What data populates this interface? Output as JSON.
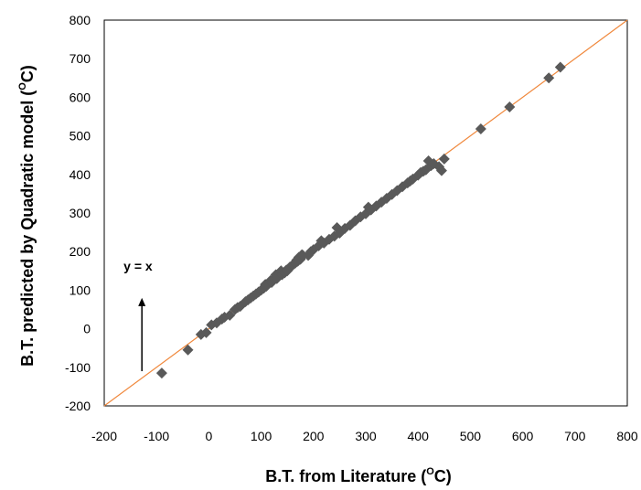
{
  "chart_data": {
    "type": "scatter",
    "title": "",
    "xlabel_main": "B.T. from Literature (",
    "xlabel_unit": "C)",
    "ylabel_main": "B.T. predicted by Quadratic model (",
    "ylabel_unit": "C)",
    "degree_symbol": "O",
    "xlim": [
      -200,
      800
    ],
    "ylim": [
      -200,
      800
    ],
    "xticks": [
      "-200",
      "-100",
      "0",
      "100",
      "200",
      "300",
      "400",
      "500",
      "600",
      "700",
      "800"
    ],
    "yticks": [
      "-200",
      "-100",
      "0",
      "100",
      "200",
      "300",
      "400",
      "500",
      "600",
      "700",
      "800"
    ],
    "grid": false,
    "legend": "none",
    "marker_color": "#595959",
    "line_color": "#f0883c",
    "reference_line": {
      "label": "y = x",
      "from": [
        -200,
        -200
      ],
      "to": [
        800,
        800
      ]
    },
    "points": [
      [
        -90,
        -115
      ],
      [
        -40,
        -55
      ],
      [
        -15,
        -15
      ],
      [
        -5,
        -10
      ],
      [
        5,
        10
      ],
      [
        15,
        15
      ],
      [
        25,
        25
      ],
      [
        30,
        30
      ],
      [
        40,
        35
      ],
      [
        50,
        50
      ],
      [
        55,
        55
      ],
      [
        60,
        58
      ],
      [
        70,
        70
      ],
      [
        75,
        75
      ],
      [
        80,
        80
      ],
      [
        85,
        85
      ],
      [
        90,
        90
      ],
      [
        95,
        95
      ],
      [
        100,
        100
      ],
      [
        105,
        105
      ],
      [
        108,
        115
      ],
      [
        110,
        110
      ],
      [
        115,
        120
      ],
      [
        118,
        125
      ],
      [
        120,
        120
      ],
      [
        125,
        130
      ],
      [
        128,
        140
      ],
      [
        130,
        130
      ],
      [
        132,
        135
      ],
      [
        135,
        140
      ],
      [
        138,
        150
      ],
      [
        140,
        140
      ],
      [
        145,
        145
      ],
      [
        148,
        152
      ],
      [
        150,
        150
      ],
      [
        155,
        160
      ],
      [
        158,
        162
      ],
      [
        160,
        165
      ],
      [
        165,
        170
      ],
      [
        168,
        178
      ],
      [
        170,
        175
      ],
      [
        172,
        185
      ],
      [
        175,
        180
      ],
      [
        178,
        192
      ],
      [
        180,
        190
      ],
      [
        190,
        190
      ],
      [
        195,
        200
      ],
      [
        200,
        205
      ],
      [
        210,
        215
      ],
      [
        215,
        228
      ],
      [
        220,
        222
      ],
      [
        230,
        232
      ],
      [
        240,
        240
      ],
      [
        245,
        262
      ],
      [
        250,
        248
      ],
      [
        260,
        260
      ],
      [
        270,
        268
      ],
      [
        280,
        280
      ],
      [
        290,
        290
      ],
      [
        300,
        298
      ],
      [
        305,
        315
      ],
      [
        310,
        308
      ],
      [
        320,
        318
      ],
      [
        330,
        328
      ],
      [
        340,
        338
      ],
      [
        350,
        348
      ],
      [
        360,
        358
      ],
      [
        370,
        368
      ],
      [
        380,
        378
      ],
      [
        385,
        383
      ],
      [
        390,
        388
      ],
      [
        400,
        398
      ],
      [
        405,
        405
      ],
      [
        410,
        408
      ],
      [
        415,
        412
      ],
      [
        420,
        435
      ],
      [
        425,
        423
      ],
      [
        430,
        428
      ],
      [
        440,
        420
      ],
      [
        445,
        410
      ],
      [
        450,
        440
      ],
      [
        520,
        518
      ],
      [
        575,
        575
      ],
      [
        650,
        650
      ],
      [
        672,
        678
      ]
    ]
  },
  "annotation": {
    "label": "y = x",
    "arrow_x": -128,
    "arrow_y_from": -110,
    "arrow_y_to": 80
  }
}
